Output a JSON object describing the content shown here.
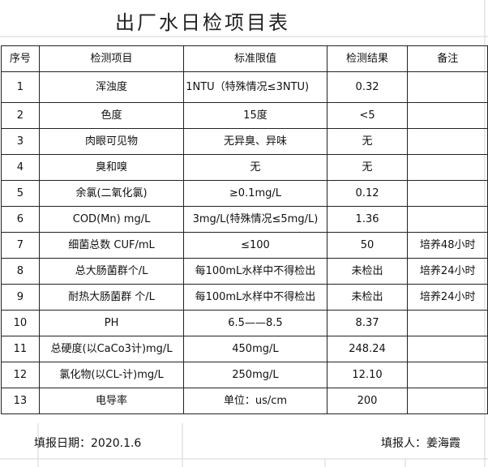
{
  "title": "出厂水日检项目表",
  "headers": [
    "序号",
    "检测项目",
    "标准限值",
    "检测结果",
    "备注"
  ],
  "rows": [
    [
      "1",
      "浑浊度",
      "1NTU（特殊情况≤3NTU)",
      "0.32",
      ""
    ],
    [
      "2",
      "色度",
      "15度",
      "<5",
      ""
    ],
    [
      "3",
      "肉眼可见物",
      "无异臭、异味",
      "无",
      ""
    ],
    [
      "4",
      "臭和嗅",
      "无",
      "无",
      ""
    ],
    [
      "5",
      "余氯(二氧化氯)",
      "≥0.1mg/L",
      "0.12",
      ""
    ],
    [
      "6",
      "COD(Mn)   mg/L",
      "3mg/L(特殊情况≤5mg/L)",
      "1.36",
      ""
    ],
    [
      "7",
      "细菌总数 CUF/mL",
      "≤100",
      "50",
      "培养48小时"
    ],
    [
      "8",
      "总大肠菌群个/L",
      "每100mL水样中不得检出",
      "未检出",
      "培养24小时"
    ],
    [
      "9",
      "耐热大肠菌群 个/L",
      "每100mL水样中不得检出",
      "未检出",
      "培养24小时"
    ],
    [
      "10",
      "PH",
      "6.5——8.5",
      "8.37",
      ""
    ],
    [
      "11",
      "总硬度(以CaCo3计)mg/L",
      "450mg/L",
      "248.24",
      ""
    ],
    [
      "12",
      "氯化物(以CL-计)mg/L",
      "250mg/L",
      "12.10",
      ""
    ],
    [
      "13",
      "电导率",
      "单位：us/cm",
      "200",
      ""
    ]
  ],
  "footer": {
    "date": "填报日期：2020.1.6",
    "reporter": "填报人：姜海霞"
  }
}
